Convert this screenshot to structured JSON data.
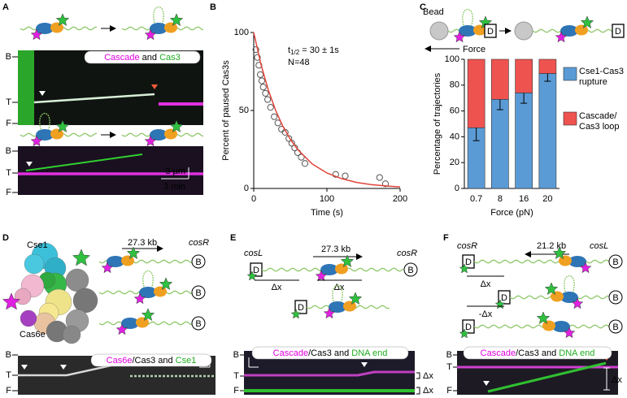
{
  "panel_labels": [
    "A",
    "B",
    "C",
    "D",
    "E",
    "F"
  ],
  "panel_a": {
    "kymo1": {
      "title": [
        {
          "text": "Cascade",
          "color": "#e000e0"
        },
        {
          "text": " and ",
          "color": "#000000"
        },
        {
          "text": "Cas3",
          "color": "#1fae1f"
        }
      ],
      "axis": [
        "B",
        "T",
        "F"
      ]
    },
    "kymo2": {
      "axis": [
        "B",
        "T",
        "F"
      ],
      "scale_x": "3 µm",
      "scale_t": "3 min"
    }
  },
  "panel_c_diagram": {
    "bead": "Bead",
    "d_labels": [
      "D",
      "D"
    ],
    "force": "Force"
  },
  "chart_data": [
    {
      "type": "scatter",
      "xlabel": "Time (s)",
      "ylabel": "Percent of paused Cas3s",
      "xlim": [
        0,
        200
      ],
      "ylim": [
        0,
        100
      ],
      "xticks": [
        0,
        100,
        200
      ],
      "yticks": [
        0,
        50,
        100
      ],
      "annotations": [
        {
          "main": "t",
          "sub": "1/2",
          "rest": " = 30 ± 1s"
        },
        {
          "main": "N=48"
        }
      ],
      "series": [
        {
          "style": "marker",
          "color": "#555555",
          "x": [
            3,
            5,
            7,
            9,
            11,
            13,
            16,
            19,
            23,
            28,
            33,
            38,
            43,
            48,
            52,
            56,
            60,
            65,
            70,
            112,
            125,
            172,
            180
          ],
          "values": [
            89,
            84,
            79,
            73,
            69,
            65,
            61,
            57,
            52,
            46,
            42,
            38,
            36,
            32,
            29,
            26,
            23,
            20,
            16,
            9,
            8,
            7,
            3
          ]
        },
        {
          "style": "line",
          "color": "#e0453a",
          "x": [
            0,
            10,
            20,
            30,
            40,
            50,
            60,
            80,
            100,
            120,
            140,
            160,
            180,
            200
          ],
          "values": [
            100,
            79.4,
            63,
            50,
            39.7,
            31.5,
            25,
            15.7,
            9.9,
            6.3,
            3.9,
            2.5,
            1.6,
            1
          ]
        }
      ]
    },
    {
      "type": "stacked_bar",
      "xlabel": "Force (pN)",
      "ylabel": "Percentage of trajectories",
      "categories": [
        "0.7",
        "8",
        "16",
        "20"
      ],
      "ylim": [
        0,
        100
      ],
      "yticks": [
        0,
        20,
        40,
        60,
        80,
        100
      ],
      "series": [
        {
          "name": "Cse1-Cas3 rupture",
          "color": "#5b9bd5",
          "values": [
            47,
            69,
            74,
            89
          ],
          "errors": [
            10,
            8,
            8,
            6
          ]
        },
        {
          "name": "Cascade/ Cas3 loop",
          "color": "#ef5350",
          "values": [
            53,
            31,
            26,
            11
          ]
        }
      ]
    }
  ],
  "panel_d": {
    "cse1": "Cse1",
    "cas6e": "Cas6e",
    "length": "27.3 kb",
    "site": "cosR",
    "ends": [
      "B",
      "B",
      "B"
    ],
    "kymo": {
      "title": [
        {
          "text": "Cas6e",
          "color": "#e000e0"
        },
        {
          "text": "/Cas3 and ",
          "color": "#000000"
        },
        {
          "text": "Cse1",
          "color": "#1fae1f"
        }
      ],
      "axis": [
        "B",
        "T",
        "F"
      ]
    }
  },
  "panel_e": {
    "left_site": "cosL",
    "length": "27.3 kb",
    "right_site": "cosR",
    "ends": [
      "B"
    ],
    "d_labels": [
      "D",
      "D"
    ],
    "dx": [
      "Δx",
      "Δx"
    ],
    "kymo": {
      "title": [
        {
          "text": "Cascade",
          "color": "#e000e0"
        },
        {
          "text": "/Cas3 and ",
          "color": "#000000"
        },
        {
          "text": "DNA end",
          "color": "#1fae1f"
        }
      ],
      "axis": [
        "B",
        "T",
        "F"
      ],
      "offsets": [
        "Δx",
        "Δx"
      ]
    }
  },
  "panel_f": {
    "left_site": "cosR",
    "length": "21.2 kb",
    "right_site": "cosL",
    "ends": [
      "B",
      "B",
      "B"
    ],
    "d_labels": [
      "D",
      "D",
      "D"
    ],
    "dx": [
      "Δx",
      "-Δx"
    ],
    "kymo": {
      "title": [
        {
          "text": "Cascade",
          "color": "#e000e0"
        },
        {
          "text": "/Cas3 and ",
          "color": "#000000"
        },
        {
          "text": "DNA end",
          "color": "#1fae1f"
        }
      ],
      "axis": [
        "B",
        "T",
        "F"
      ],
      "offsets": [
        "Δx"
      ]
    }
  }
}
